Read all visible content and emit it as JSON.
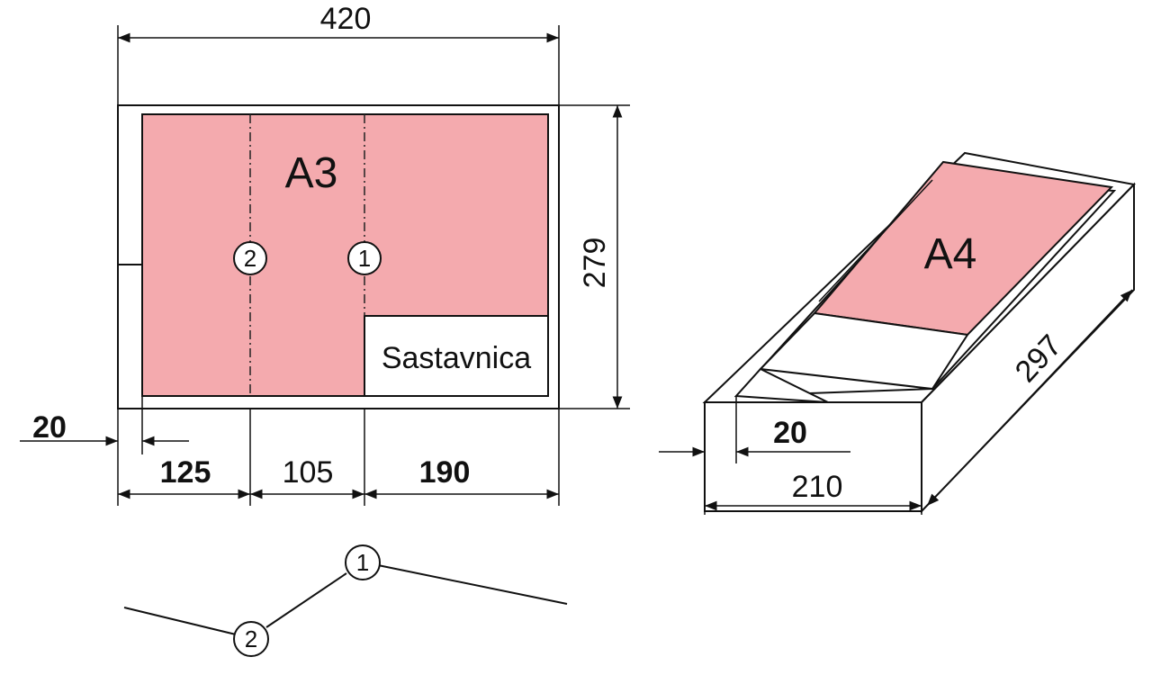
{
  "a3": {
    "sheet_label": "A3",
    "title_block_label": "Sastavnica",
    "width_dim": "420",
    "height_dim": "279",
    "margin_dim": "20",
    "fold_segment_1": "125",
    "fold_segment_2": "105",
    "fold_segment_3": "190",
    "fold_line_1": "1",
    "fold_line_2": "2"
  },
  "a4": {
    "sheet_label": "A4",
    "width_dim": "210",
    "length_dim": "297",
    "margin_dim": "20"
  },
  "fold_profile": {
    "marker_1": "1",
    "marker_2": "2"
  },
  "colors": {
    "sheet_fill": "#f4aaae",
    "line": "#111111"
  }
}
